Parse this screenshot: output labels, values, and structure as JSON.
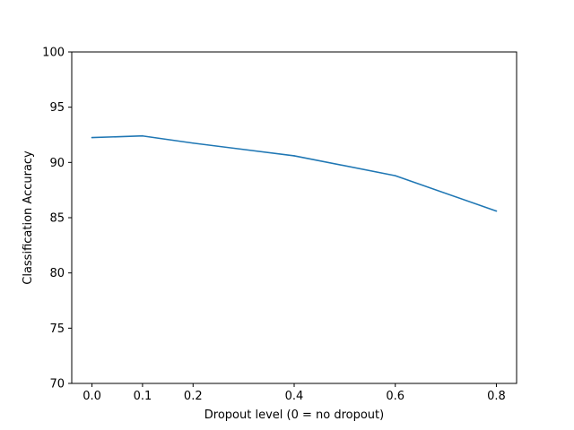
{
  "chart_data": {
    "type": "line",
    "title": "",
    "xlabel": "Dropout level (0 = no dropout)",
    "ylabel": "Classification Accuracy",
    "xlim": [
      -0.04,
      0.84
    ],
    "ylim": [
      70,
      100
    ],
    "xticks": [
      0.0,
      0.1,
      0.2,
      0.4,
      0.6,
      0.8
    ],
    "xtick_labels": [
      "0.0",
      "0.1",
      "0.2",
      "0.4",
      "0.6",
      "0.8"
    ],
    "yticks": [
      70,
      75,
      80,
      85,
      90,
      95,
      100
    ],
    "ytick_labels": [
      "70",
      "75",
      "80",
      "85",
      "90",
      "95",
      "100"
    ],
    "grid": false,
    "series": [
      {
        "color": "#1f77b4",
        "x": [
          0.0,
          0.1,
          0.2,
          0.4,
          0.6,
          0.8
        ],
        "y": [
          92.25,
          92.4,
          91.75,
          90.6,
          88.8,
          85.6
        ]
      }
    ]
  }
}
